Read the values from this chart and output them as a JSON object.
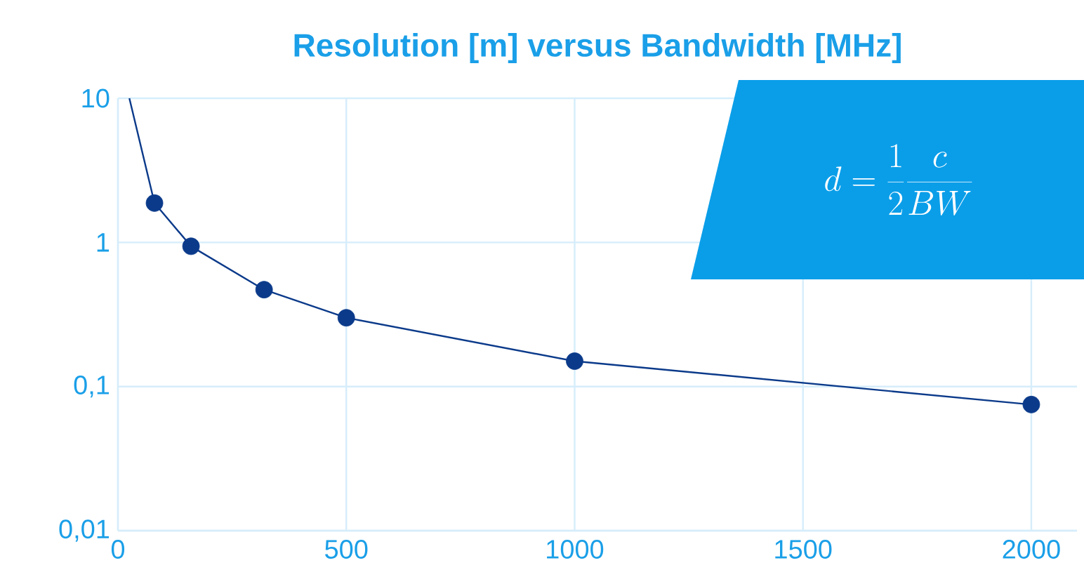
{
  "chart_data": {
    "type": "line",
    "title": "Resolution [m] versus Bandwidth [MHz]",
    "log": "y",
    "grid": true,
    "xlim": [
      0,
      2100
    ],
    "ylim": [
      0.01,
      10
    ],
    "xticks": [
      0,
      500,
      1000,
      1500,
      2000
    ],
    "yticks": [
      {
        "value": 0.01,
        "label": "0,01"
      },
      {
        "value": 0.1,
        "label": "0,1"
      },
      1,
      10
    ],
    "annotations": [
      "d = \\frac{1}{2}\\frac{c}{BW}"
    ],
    "series": [
      {
        "color": "#0b3a8a",
        "line_style": "solid",
        "marker": "none",
        "x": [
          25,
          80,
          160,
          320,
          500,
          1000,
          2000
        ],
        "values": [
          10,
          1.875,
          0.94,
          0.47,
          0.3,
          0.15,
          0.075
        ]
      },
      {
        "type": "scatter",
        "color": "#0b3a8a",
        "marker": "circle",
        "x": [
          80,
          160,
          320,
          500,
          1000,
          2000
        ],
        "values": [
          1.875,
          0.94,
          0.47,
          0.3,
          0.15,
          0.075
        ]
      }
    ]
  }
}
